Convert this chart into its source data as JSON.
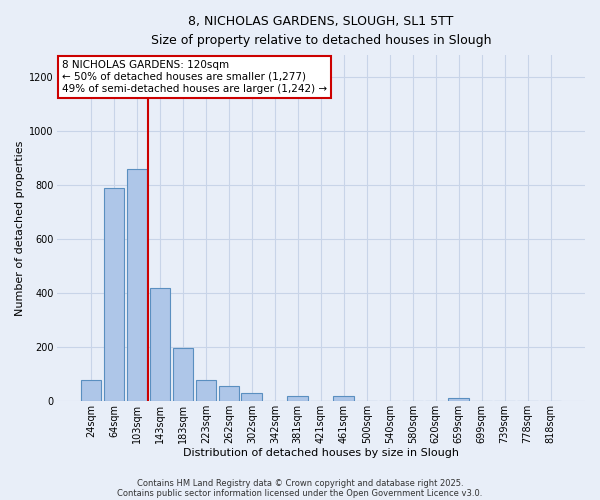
{
  "title_line1": "8, NICHOLAS GARDENS, SLOUGH, SL1 5TT",
  "title_line2": "Size of property relative to detached houses in Slough",
  "xlabel": "Distribution of detached houses by size in Slough",
  "ylabel": "Number of detached properties",
  "bar_labels": [
    "24sqm",
    "64sqm",
    "103sqm",
    "143sqm",
    "183sqm",
    "223sqm",
    "262sqm",
    "302sqm",
    "342sqm",
    "381sqm",
    "421sqm",
    "461sqm",
    "500sqm",
    "540sqm",
    "580sqm",
    "620sqm",
    "659sqm",
    "699sqm",
    "739sqm",
    "778sqm",
    "818sqm"
  ],
  "bar_values": [
    80,
    790,
    860,
    420,
    195,
    80,
    55,
    30,
    0,
    20,
    0,
    20,
    0,
    0,
    0,
    0,
    10,
    0,
    0,
    0,
    0
  ],
  "bar_color": "#aec6e8",
  "bar_edge_color": "#5a8fc0",
  "background_color": "#e8eef8",
  "grid_color": "#c8d4e8",
  "vline_x_idx": 2.5,
  "vline_color": "#cc0000",
  "annotation_text": "8 NICHOLAS GARDENS: 120sqm\n← 50% of detached houses are smaller (1,277)\n49% of semi-detached houses are larger (1,242) →",
  "annotation_box_color": "#ffffff",
  "annotation_box_edge": "#cc0000",
  "ylim": [
    0,
    1280
  ],
  "yticks": [
    0,
    200,
    400,
    600,
    800,
    1000,
    1200
  ],
  "footnote1": "Contains HM Land Registry data © Crown copyright and database right 2025.",
  "footnote2": "Contains public sector information licensed under the Open Government Licence v3.0."
}
